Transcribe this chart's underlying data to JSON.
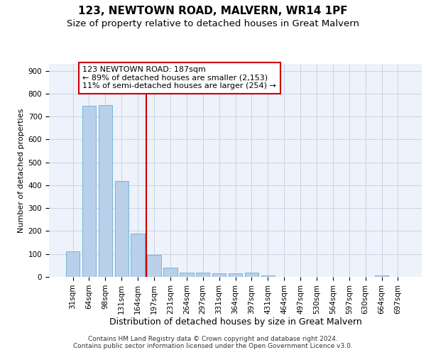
{
  "title1": "123, NEWTOWN ROAD, MALVERN, WR14 1PF",
  "title2": "Size of property relative to detached houses in Great Malvern",
  "xlabel": "Distribution of detached houses by size in Great Malvern",
  "ylabel": "Number of detached properties",
  "bar_labels": [
    "31sqm",
    "64sqm",
    "98sqm",
    "131sqm",
    "164sqm",
    "197sqm",
    "231sqm",
    "264sqm",
    "297sqm",
    "331sqm",
    "364sqm",
    "397sqm",
    "431sqm",
    "464sqm",
    "497sqm",
    "530sqm",
    "564sqm",
    "597sqm",
    "630sqm",
    "664sqm",
    "697sqm"
  ],
  "bar_values": [
    112,
    748,
    750,
    418,
    188,
    95,
    40,
    20,
    20,
    15,
    15,
    20,
    5,
    0,
    0,
    0,
    0,
    0,
    0,
    5,
    0
  ],
  "bar_color": "#b8d0ea",
  "bar_edge_color": "#6aaed6",
  "grid_color": "#c8d4e8",
  "background_color": "#eef2fa",
  "vline_color": "#cc0000",
  "annotation_text": "123 NEWTOWN ROAD: 187sqm\n← 89% of detached houses are smaller (2,153)\n11% of semi-detached houses are larger (254) →",
  "annotation_box_color": "#ffffff",
  "annotation_box_edge": "#cc0000",
  "ylim": [
    0,
    930
  ],
  "yticks": [
    0,
    100,
    200,
    300,
    400,
    500,
    600,
    700,
    800,
    900
  ],
  "footer1": "Contains HM Land Registry data © Crown copyright and database right 2024.",
  "footer2": "Contains public sector information licensed under the Open Government Licence v3.0.",
  "title_fontsize": 11,
  "subtitle_fontsize": 9.5,
  "ylabel_fontsize": 8,
  "xlabel_fontsize": 9,
  "tick_fontsize": 7.5,
  "annotation_fontsize": 8,
  "footer_fontsize": 6.5
}
